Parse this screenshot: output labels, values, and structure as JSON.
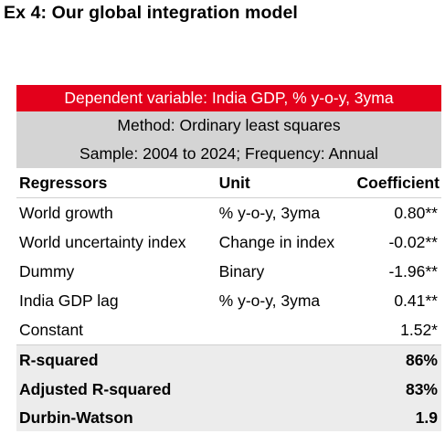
{
  "exhibit_title": "Ex 4: Our global integration model",
  "table": {
    "dependent_variable": "Dependent variable: India GDP, % y-o-y, 3yma",
    "method": "Method: Ordinary least squares",
    "sample": "Sample: 2004 to 2024; Frequency: Annual",
    "headers": {
      "regressors": "Regressors",
      "unit": "Unit",
      "coefficient": "Coefficient"
    },
    "rows": [
      {
        "regressor": "World growth",
        "unit": "% y-o-y, 3yma",
        "coefficient": "0.80**"
      },
      {
        "regressor": "World uncertainty index",
        "unit": "Change in index",
        "coefficient": "-0.02**"
      },
      {
        "regressor": "Dummy",
        "unit": "Binary",
        "coefficient": "-1.96**"
      },
      {
        "regressor": "India GDP lag",
        "unit": "% y-o-y, 3yma",
        "coefficient": "0.41**"
      },
      {
        "regressor": "Constant",
        "unit": "",
        "coefficient": "1.52*"
      }
    ],
    "stats": [
      {
        "label": "R-squared",
        "value": "86%"
      },
      {
        "label": "Adjusted R-squared",
        "value": "83%"
      },
      {
        "label": "Durbin-Watson",
        "value": "1.9"
      }
    ]
  },
  "colors": {
    "header_red": "#e3001b",
    "header_grey": "#d4d4d4",
    "stat_row_bg": "#ececec"
  }
}
